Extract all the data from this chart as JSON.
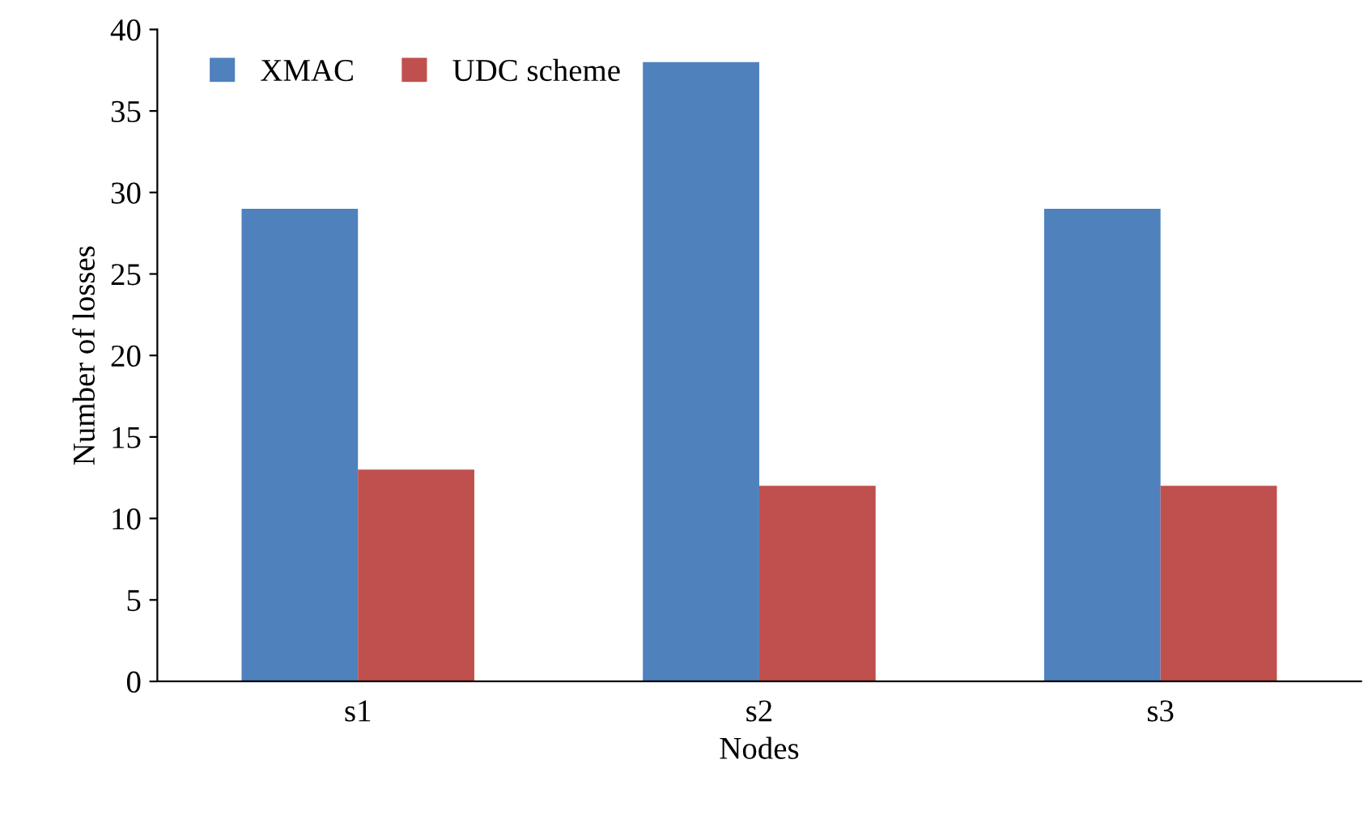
{
  "chart_data": {
    "type": "bar",
    "xlabel": "Nodes",
    "ylabel": "Number of losses",
    "categories": [
      "s1",
      "s2",
      "s3"
    ],
    "series": [
      {
        "name": "XMAC",
        "color": "#4f81bd",
        "values": [
          29,
          38,
          29
        ]
      },
      {
        "name": "UDC scheme",
        "color": "#c0504d",
        "values": [
          13,
          12,
          12
        ]
      }
    ],
    "ylim": [
      0,
      40
    ],
    "yticks": [
      0,
      5,
      10,
      15,
      20,
      25,
      30,
      35,
      40
    ],
    "grid": false,
    "legend": "top left"
  }
}
